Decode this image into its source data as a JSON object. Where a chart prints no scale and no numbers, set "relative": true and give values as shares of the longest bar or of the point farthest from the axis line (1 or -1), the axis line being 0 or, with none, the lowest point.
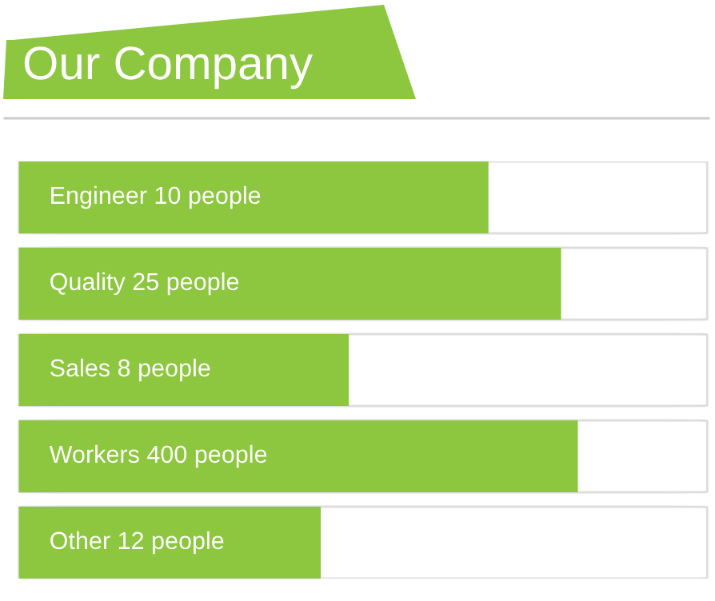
{
  "chart_data": {
    "type": "bar",
    "title": "Our Company",
    "orientation": "horizontal",
    "relative": true,
    "categories": [
      "Engineer 10 people",
      "Quality 25 people",
      "Sales 8 people",
      "Workers 400 people",
      "Other 12 people"
    ],
    "values": [
      0.84,
      0.97,
      0.59,
      1,
      0.54
    ],
    "color": "#8dc63f"
  }
}
